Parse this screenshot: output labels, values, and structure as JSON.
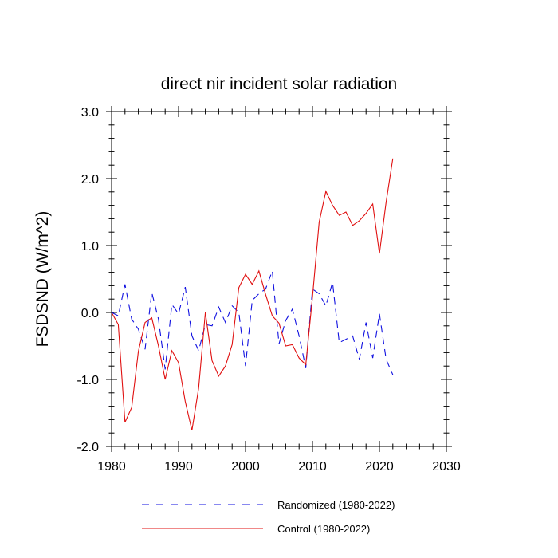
{
  "chart_data": {
    "type": "line",
    "title": "direct nir incident solar radiation",
    "xlabel": "",
    "ylabel": "FSDSND  (W/m^2)",
    "xlim": [
      1980,
      2030
    ],
    "ylim": [
      -2.0,
      3.0
    ],
    "x_ticks": [
      1980,
      1990,
      2000,
      2010,
      2020,
      2030
    ],
    "x_tick_labels": [
      "1980",
      "1990",
      "2000",
      "2010",
      "2020",
      "2030"
    ],
    "y_ticks": [
      -2.0,
      -1.0,
      0.0,
      1.0,
      2.0,
      3.0
    ],
    "y_tick_labels": [
      "-2.0",
      "-1.0",
      "0.0",
      "1.0",
      "2.0",
      "3.0"
    ],
    "grid": false,
    "legend_position": "bottom",
    "x": [
      1980,
      1981,
      1982,
      1983,
      1984,
      1985,
      1986,
      1987,
      1988,
      1989,
      1990,
      1991,
      1992,
      1993,
      1994,
      1995,
      1996,
      1997,
      1998,
      1999,
      2000,
      2001,
      2002,
      2003,
      2004,
      2005,
      2006,
      2007,
      2008,
      2009,
      2010,
      2011,
      2012,
      2013,
      2014,
      2015,
      2016,
      2017,
      2018,
      2019,
      2020,
      2021,
      2022
    ],
    "series": [
      {
        "name": "Randomized (1980-2022)",
        "color": "#1010e0",
        "dash": "dashed",
        "values": [
          0.0,
          -0.05,
          0.42,
          -0.1,
          -0.25,
          -0.55,
          0.3,
          -0.1,
          -0.85,
          0.12,
          -0.02,
          0.38,
          -0.35,
          -0.57,
          -0.18,
          -0.2,
          0.08,
          -0.15,
          0.1,
          0.0,
          -0.8,
          0.18,
          0.28,
          0.35,
          0.62,
          -0.47,
          -0.12,
          0.05,
          -0.35,
          -0.83,
          0.35,
          0.28,
          0.1,
          0.45,
          -0.45,
          -0.4,
          -0.35,
          -0.7,
          -0.15,
          -0.68,
          -0.02,
          -0.7,
          -0.93
        ]
      },
      {
        "name": "Control (1980-2022)",
        "color": "#e01010",
        "dash": "solid",
        "values": [
          0.0,
          -0.18,
          -1.64,
          -1.42,
          -0.58,
          -0.15,
          -0.08,
          -0.5,
          -1.0,
          -0.57,
          -0.75,
          -1.33,
          -1.76,
          -1.13,
          0.0,
          -0.72,
          -0.95,
          -0.8,
          -0.48,
          0.37,
          0.57,
          0.42,
          0.62,
          0.27,
          -0.05,
          -0.16,
          -0.5,
          -0.48,
          -0.68,
          -0.78,
          0.23,
          1.35,
          1.81,
          1.6,
          1.45,
          1.5,
          1.3,
          1.37,
          1.48,
          1.62,
          0.88,
          1.65,
          2.3
        ]
      }
    ]
  }
}
